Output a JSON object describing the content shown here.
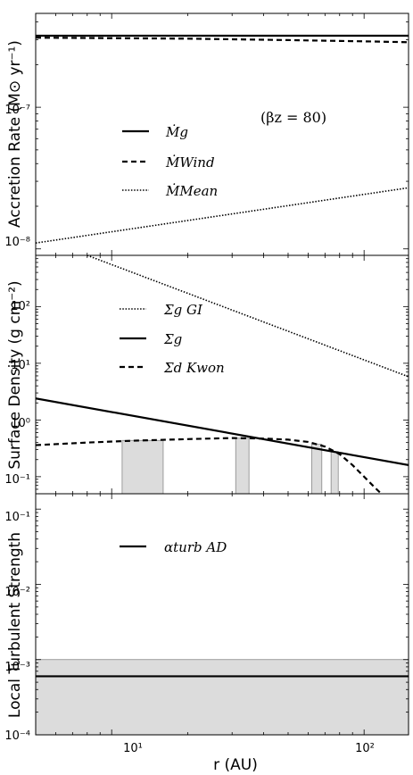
{
  "chart_data": [
    {
      "type": "line",
      "ylabel": "Accretion Rate (M⊙ yr⁻¹)",
      "xscale": "log",
      "yscale": "log",
      "xlim": [
        5,
        150
      ],
      "ylim": [
        9e-09,
        4.6e-07
      ],
      "ytick_values": [
        1e-07,
        1e-08
      ],
      "ytick_labels": [
        "10⁻⁷",
        "10⁻⁸"
      ],
      "annotation": "(βz = 80)",
      "legend_position": "center-left",
      "series": [
        {
          "name": "Ṁg",
          "style": "solid",
          "x": [
            5,
            150
          ],
          "y": [
            3.2e-07,
            3.2e-07
          ]
        },
        {
          "name": "ṀWind",
          "style": "dashed",
          "x": [
            5,
            20,
            50,
            100,
            150
          ],
          "y": [
            3.1e-07,
            3.05e-07,
            2.98e-07,
            2.92e-07,
            2.88e-07
          ]
        },
        {
          "name": "ṀMean",
          "style": "dotted",
          "x": [
            5,
            150
          ],
          "y": [
            1.1e-08,
            2.7e-08
          ]
        }
      ]
    },
    {
      "type": "line",
      "ylabel": "Surface Density (g cm⁻²)",
      "xscale": "log",
      "yscale": "log",
      "xlim": [
        5,
        150
      ],
      "ylim": [
        0.05,
        800
      ],
      "ytick_values": [
        100,
        10,
        1,
        0.1
      ],
      "ytick_labels": [
        "10²",
        "10¹",
        "10⁰",
        "10⁻¹"
      ],
      "legend_position": "upper-left",
      "shaded_x_ranges": [
        [
          11,
          16
        ],
        [
          31,
          35
        ],
        [
          62,
          68
        ],
        [
          74,
          79
        ]
      ],
      "series": [
        {
          "name": "Σg GI",
          "style": "dotted",
          "x": [
            8,
            150
          ],
          "y": [
            800,
            5.8
          ]
        },
        {
          "name": "Σg",
          "style": "solid",
          "x": [
            5,
            150
          ],
          "y": [
            2.4,
            0.16
          ]
        },
        {
          "name": "Σd Kwon",
          "style": "dashed",
          "x": [
            5,
            8,
            12,
            20,
            30,
            40,
            50,
            60,
            70,
            80,
            90,
            100,
            110,
            120
          ],
          "y": [
            0.36,
            0.4,
            0.43,
            0.46,
            0.48,
            0.47,
            0.45,
            0.41,
            0.34,
            0.25,
            0.16,
            0.1,
            0.065,
            0.045
          ]
        }
      ]
    },
    {
      "type": "line",
      "ylabel": "Local Turbulent Strength",
      "xlabel": "r (AU)",
      "xscale": "log",
      "yscale": "log",
      "xlim": [
        5,
        150
      ],
      "ylim": [
        0.0001,
        0.16
      ],
      "ytick_values": [
        0.1,
        0.01,
        0.001,
        0.0001
      ],
      "ytick_labels": [
        "10⁻¹",
        "10⁻²",
        "10⁻³",
        "10⁻⁴"
      ],
      "xtick_values": [
        10,
        100
      ],
      "xtick_labels": [
        "10¹",
        "10²"
      ],
      "legend_position": "upper-left",
      "shaded_y_range": [
        0.0001,
        0.001
      ],
      "series": [
        {
          "name": "αturb AD",
          "style": "solid",
          "x": [
            5,
            150
          ],
          "y": [
            0.0006,
            0.0006
          ]
        }
      ]
    }
  ]
}
